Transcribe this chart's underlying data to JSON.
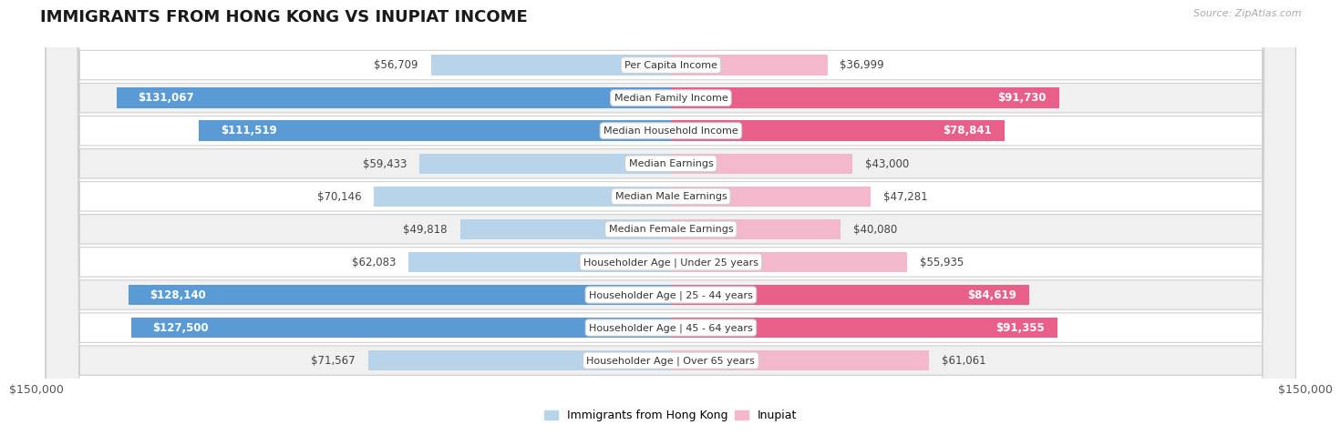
{
  "title": "IMMIGRANTS FROM HONG KONG VS INUPIAT INCOME",
  "source": "Source: ZipAtlas.com",
  "categories": [
    "Per Capita Income",
    "Median Family Income",
    "Median Household Income",
    "Median Earnings",
    "Median Male Earnings",
    "Median Female Earnings",
    "Householder Age | Under 25 years",
    "Householder Age | 25 - 44 years",
    "Householder Age | 45 - 64 years",
    "Householder Age | Over 65 years"
  ],
  "hk_values": [
    56709,
    131067,
    111519,
    59433,
    70146,
    49818,
    62083,
    128140,
    127500,
    71567
  ],
  "inupiat_values": [
    36999,
    91730,
    78841,
    43000,
    47281,
    40080,
    55935,
    84619,
    91355,
    61061
  ],
  "hk_labels": [
    "$56,709",
    "$131,067",
    "$111,519",
    "$59,433",
    "$70,146",
    "$49,818",
    "$62,083",
    "$128,140",
    "$127,500",
    "$71,567"
  ],
  "inupiat_labels": [
    "$36,999",
    "$91,730",
    "$78,841",
    "$43,000",
    "$47,281",
    "$40,080",
    "$55,935",
    "$84,619",
    "$91,355",
    "$61,061"
  ],
  "hk_color_light": "#b8d4ea",
  "hk_color_dark": "#5b9bd5",
  "inupiat_color_light": "#f4b8cc",
  "inupiat_color_dark": "#e8608a",
  "hk_inside_threshold": 90000,
  "inupiat_inside_threshold": 70000,
  "axis_max": 150000,
  "bg_color": "#ffffff",
  "row_bg_alt": "#f0f0f0",
  "row_bg_normal": "#ffffff",
  "legend_hk": "Immigrants from Hong Kong",
  "legend_inupiat": "Inupiat",
  "bar_height": 0.62,
  "x_tick_labels": [
    "$150,000",
    "$150,000"
  ],
  "title_fontsize": 13,
  "label_fontsize": 8.5,
  "cat_fontsize": 8.0
}
